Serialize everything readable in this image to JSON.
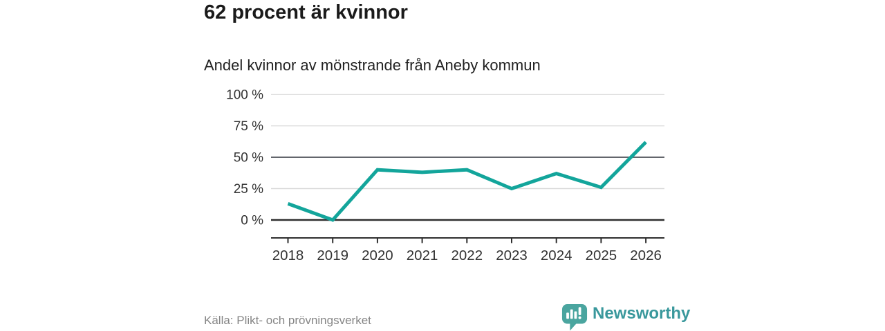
{
  "header": {
    "title": "62 procent är kvinnor",
    "subtitle": "Andel kvinnor av mönstrande från Aneby kommun"
  },
  "chart_data": {
    "type": "line",
    "title": "Andel kvinnor av mönstrande från Aneby kommun",
    "x": [
      "2018",
      "2019",
      "2020",
      "2021",
      "2022",
      "2023",
      "2024",
      "2025",
      "2026"
    ],
    "series": [
      {
        "name": "Andel kvinnor",
        "values": [
          13,
          0,
          40,
          38,
          40,
          25,
          37,
          26,
          62
        ]
      }
    ],
    "xlabel": "",
    "ylabel": "",
    "ylim": [
      0,
      100
    ],
    "yticks": [
      {
        "value": 0,
        "label": "0 %"
      },
      {
        "value": 25,
        "label": "25 %"
      },
      {
        "value": 50,
        "label": "50 %"
      },
      {
        "value": 75,
        "label": "75 %"
      },
      {
        "value": 100,
        "label": "100 %"
      }
    ],
    "grid": true,
    "legend": false
  },
  "footer": {
    "source": "Källa: Plikt- och prövningsverket",
    "brand": "Newsworthy"
  },
  "colors": {
    "line": "#13a59b",
    "grid_light": "#d9d9d9",
    "grid_mid": "#63666c",
    "axis_dark": "#2e2e2e",
    "text_axis": "#333333",
    "brand_text": "#39989c",
    "brand_mark": "#4aa59f",
    "background": "#ffffff"
  }
}
